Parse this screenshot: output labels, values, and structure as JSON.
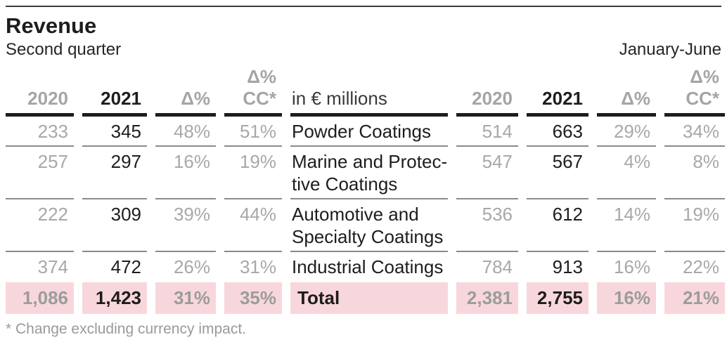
{
  "header": {
    "title": "Revenue",
    "period_left": "Second quarter",
    "period_right": "January-June"
  },
  "table": {
    "unit_label": "in € millions",
    "columns": {
      "y2020": "2020",
      "y2021": "2021",
      "delta": "Δ%",
      "delta_cc_line1": "Δ%",
      "delta_cc_line2": "CC*"
    },
    "rows": [
      {
        "label": "Powder Coatings",
        "q2": {
          "y2020": "233",
          "y2021": "345",
          "delta": "48%",
          "cc": "51%"
        },
        "h1": {
          "y2020": "514",
          "y2021": "663",
          "delta": "29%",
          "cc": "34%"
        }
      },
      {
        "label": "Marine and Protec-\ntive Coatings",
        "q2": {
          "y2020": "257",
          "y2021": "297",
          "delta": "16%",
          "cc": "19%"
        },
        "h1": {
          "y2020": "547",
          "y2021": "567",
          "delta": "4%",
          "cc": "8%"
        }
      },
      {
        "label": "Automotive and\nSpecialty Coatings",
        "q2": {
          "y2020": "222",
          "y2021": "309",
          "delta": "39%",
          "cc": "44%"
        },
        "h1": {
          "y2020": "536",
          "y2021": "612",
          "delta": "14%",
          "cc": "19%"
        }
      },
      {
        "label": "Industrial Coatings",
        "q2": {
          "y2020": "374",
          "y2021": "472",
          "delta": "26%",
          "cc": "31%"
        },
        "h1": {
          "y2020": "784",
          "y2021": "913",
          "delta": "16%",
          "cc": "22%"
        }
      }
    ],
    "total": {
      "label": "Total",
      "q2": {
        "y2020": "1,086",
        "y2021": "1,423",
        "delta": "31%",
        "cc": "35%"
      },
      "h1": {
        "y2020": "2,381",
        "y2021": "2,755",
        "delta": "16%",
        "cc": "21%"
      }
    }
  },
  "footnote": "* Change excluding currency impact.",
  "colors": {
    "accent_pink": "#f8d7dc",
    "gray_text": "#a8a8a8",
    "dark_text": "#1d1d1b",
    "separator_gray": "#8a8a8a"
  }
}
